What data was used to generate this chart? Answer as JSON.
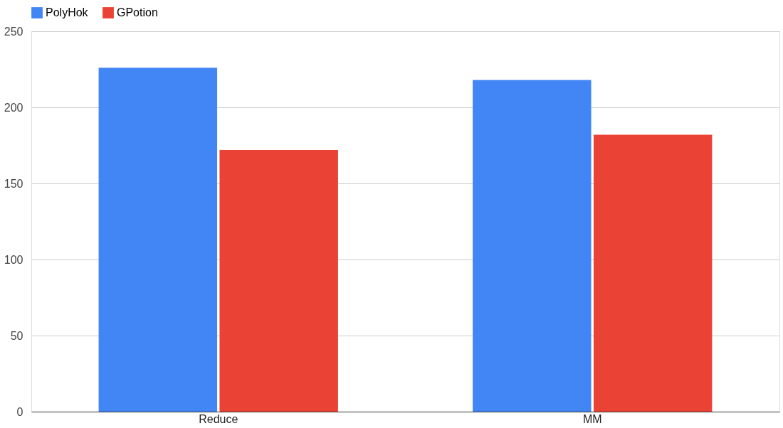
{
  "chart_data": {
    "type": "bar",
    "categories": [
      "Reduce",
      "MM"
    ],
    "series": [
      {
        "name": "PolyHok",
        "color": "#4285f4",
        "values": [
          226,
          218
        ]
      },
      {
        "name": "GPotion",
        "color": "#ea4335",
        "values": [
          172,
          182
        ]
      }
    ],
    "ylim": [
      0,
      250
    ],
    "yticks": [
      0,
      50,
      100,
      150,
      200,
      250
    ],
    "grid": "y",
    "legend": "top"
  }
}
